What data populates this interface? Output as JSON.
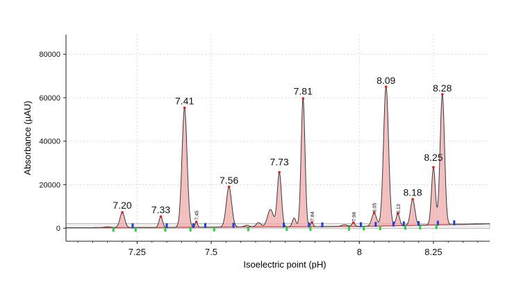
{
  "chart_data": {
    "type": "line",
    "title": "",
    "xlabel": "Isoelectric point (pH)",
    "ylabel": "Absorbance (µAU)",
    "xlim": [
      7.01,
      8.44
    ],
    "ylim": [
      -6000,
      89000
    ],
    "x_ticks": [
      7.25,
      7.5,
      8,
      8.25
    ],
    "x_tick_labels": [
      "7.25",
      "7.5",
      "8",
      "8.25"
    ],
    "y_ticks": [
      0,
      20000,
      40000,
      60000,
      80000
    ],
    "y_tick_labels": [
      "0",
      "20000",
      "40000",
      "60000",
      "80000"
    ],
    "grid": true,
    "baseline_band": [
      -200,
      2200
    ],
    "series": [
      {
        "type": "electropherogram",
        "baseline": [
          [
            7.01,
            200
          ],
          [
            7.3,
            300
          ],
          [
            7.7,
            600
          ],
          [
            8.0,
            800
          ],
          [
            8.44,
            2000
          ]
        ],
        "peaks": [
          {
            "x": 7.15,
            "h": 400,
            "w": 0.01
          },
          {
            "x": 7.2,
            "h": 7000,
            "w": 0.008
          },
          {
            "x": 7.33,
            "h": 5000,
            "w": 0.006
          },
          {
            "x": 7.41,
            "h": 55000,
            "w": 0.0085
          },
          {
            "x": 7.45,
            "h": 2500,
            "w": 0.004
          },
          {
            "x": 7.56,
            "h": 18500,
            "w": 0.009
          },
          {
            "x": 7.62,
            "h": 800,
            "w": 0.008
          },
          {
            "x": 7.66,
            "h": 2000,
            "w": 0.008
          },
          {
            "x": 7.7,
            "h": 8000,
            "w": 0.01
          },
          {
            "x": 7.73,
            "h": 25000,
            "w": 0.007
          },
          {
            "x": 7.78,
            "h": 4000,
            "w": 0.006
          },
          {
            "x": 7.81,
            "h": 59000,
            "w": 0.0065
          },
          {
            "x": 7.84,
            "h": 2000,
            "w": 0.004
          },
          {
            "x": 7.95,
            "h": 800,
            "w": 0.01
          },
          {
            "x": 7.98,
            "h": 1800,
            "w": 0.005
          },
          {
            "x": 8.05,
            "h": 6000,
            "w": 0.008
          },
          {
            "x": 8.09,
            "h": 64000,
            "w": 0.0085
          },
          {
            "x": 8.13,
            "h": 5500,
            "w": 0.006
          },
          {
            "x": 8.18,
            "h": 12000,
            "w": 0.0075
          },
          {
            "x": 8.25,
            "h": 26500,
            "w": 0.0065
          },
          {
            "x": 8.28,
            "h": 60000,
            "w": 0.0075
          }
        ]
      }
    ],
    "peak_labels": [
      {
        "text": "7.20",
        "x": 7.2,
        "y": 7000,
        "size": "large"
      },
      {
        "text": "7.33",
        "x": 7.33,
        "y": 5000,
        "size": "large"
      },
      {
        "text": "7.41",
        "x": 7.41,
        "y": 55000,
        "size": "large"
      },
      {
        "text": "7.45",
        "x": 7.45,
        "y": 2500,
        "size": "small"
      },
      {
        "text": "7.56",
        "x": 7.56,
        "y": 18500,
        "size": "large"
      },
      {
        "text": "7.73",
        "x": 7.73,
        "y": 27000,
        "size": "large"
      },
      {
        "text": "7.81",
        "x": 7.81,
        "y": 59500,
        "size": "large"
      },
      {
        "text": "7.84",
        "x": 7.84,
        "y": 2000,
        "size": "small"
      },
      {
        "text": "7.98",
        "x": 7.98,
        "y": 1800,
        "size": "small"
      },
      {
        "text": "8.05",
        "x": 8.05,
        "y": 6000,
        "size": "small"
      },
      {
        "text": "8.09",
        "x": 8.09,
        "y": 64500,
        "size": "large"
      },
      {
        "text": "8.13",
        "x": 8.13,
        "y": 5500,
        "size": "small"
      },
      {
        "text": "8.18",
        "x": 8.18,
        "y": 13000,
        "size": "large"
      },
      {
        "text": "8.25",
        "x": 8.25,
        "y": 29000,
        "size": "large"
      },
      {
        "text": "8.28",
        "x": 8.28,
        "y": 61000,
        "size": "large"
      }
    ],
    "markers": {
      "apex_color": "#e41a1c",
      "blue": [
        7.235,
        7.35,
        7.44,
        7.48,
        7.575,
        7.745,
        7.83,
        7.875,
        8.005,
        8.055,
        8.115,
        8.15,
        8.2,
        8.265,
        8.32
      ],
      "green": [
        7.17,
        7.245,
        7.345,
        7.43,
        7.51,
        7.625,
        7.755,
        7.835,
        7.965,
        8.015,
        8.07,
        8.155,
        8.205,
        8.26
      ]
    },
    "colors": {
      "trace": "#3a3a3a",
      "fill": "#f2b6b6",
      "fill_line": "#e87a7a",
      "baseline_line": "#d01c1c",
      "band": "#eeeeee",
      "marker_blue": "#1f3fd8",
      "marker_green": "#2ecc40",
      "grid": "#dddddd",
      "axis": "#222222"
    }
  }
}
